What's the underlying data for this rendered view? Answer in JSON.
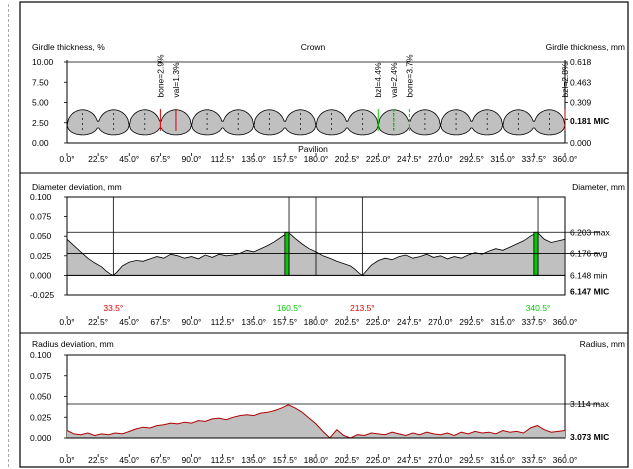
{
  "colors": {
    "fill": "#c0c0c0",
    "red": "#e00000",
    "green": "#00cc00",
    "darkred": "#b00000"
  },
  "chart_data": [
    {
      "type": "area",
      "name_key": "girdle",
      "title_left": "Girdle thickness, %",
      "title_right": "Girdle thickness, mm",
      "top_label": "Crown",
      "bottom_label": "Pavilion",
      "x_ticks": [
        "0.0°",
        "22.5°",
        "45.0°",
        "67.5°",
        "90.0°",
        "112.5°",
        "135.0°",
        "157.5°",
        "180.0°",
        "202.5°",
        "225.0°",
        "247.5°",
        "270.0°",
        "292.5°",
        "315.0°",
        "337.5°",
        "360.0°"
      ],
      "xlim": [
        0,
        360
      ],
      "ylim": [
        0,
        10
      ],
      "y_ticks_left": [
        "10.00",
        "7.50",
        "5.00",
        "2.50",
        "0.00"
      ],
      "y_ticks_right": [
        "0.618",
        "0.463",
        "0.309",
        "0.000"
      ],
      "y_ticks_right_values": [
        10,
        7.5,
        5,
        0
      ],
      "right_highlight": {
        "label": "0.181 MIC",
        "value": 2.93
      },
      "upper_scallops": 16,
      "upper_base": 4.1,
      "upper_dip": 2.1,
      "lower_base": 1.0,
      "lower_peak": 2.2,
      "annotations": [
        {
          "text": "bone=2.9%",
          "angle": 67.5,
          "color": "red"
        },
        {
          "text": "val=1.3%",
          "angle": 78.75,
          "color": "red"
        },
        {
          "text": "bzl=4.4%",
          "angle": 225.0,
          "color": "green"
        },
        {
          "text": "val=2.4%",
          "angle": 236.25,
          "color": "green"
        },
        {
          "text": "bone=3.7%",
          "angle": 247.5,
          "color": "green"
        },
        {
          "text": "bzl=2.8%",
          "angle": 360.0,
          "color": "darkred"
        }
      ]
    },
    {
      "type": "area",
      "name_key": "diameter",
      "title_left": "Diameter deviation, mm",
      "title_right": "Diameter, mm",
      "x_ticks": [
        "0.0°",
        "22.5°",
        "45.0°",
        "67.5°",
        "90.0°",
        "112.5°",
        "135.0°",
        "157.5°",
        "180.0°",
        "202.5°",
        "225.0°",
        "247.5°",
        "270.0°",
        "292.5°",
        "315.0°",
        "337.5°",
        "360.0°"
      ],
      "xlim": [
        0,
        360
      ],
      "ylim": [
        -0.025,
        0.1
      ],
      "y_ticks_left": [
        "0.100",
        "0.075",
        "0.050",
        "0.025",
        "0.000",
        "-0.025"
      ],
      "y_tick_values": [
        0.1,
        0.075,
        0.05,
        0.025,
        0.0,
        -0.025
      ],
      "right_labels": [
        {
          "text": "6.203 max",
          "value": 0.055
        },
        {
          "text": "6.176 avg",
          "value": 0.028
        },
        {
          "text": "6.148 min",
          "value": 0.0
        },
        {
          "text": "6.147 MIC",
          "value": -0.009,
          "bold": true
        }
      ],
      "ref_lines": [
        0.055,
        0.028
      ],
      "vlines": [
        33.5,
        180.0,
        213.5
      ],
      "markers": [
        {
          "text": "33.5°",
          "angle": 33.5,
          "color": "red"
        },
        {
          "text": "160.5°",
          "angle": 160.5,
          "color": "green"
        },
        {
          "text": "213.5°",
          "angle": 213.5,
          "color": "red"
        },
        {
          "text": "340.5°",
          "angle": 340.5,
          "color": "green"
        }
      ],
      "green_bars": [
        157.5,
        160.5,
        337.5,
        340.5
      ],
      "x": [
        0,
        5,
        10,
        15,
        20,
        25,
        28,
        31,
        33.5,
        36,
        40,
        45,
        50,
        55,
        60,
        65,
        70,
        75,
        80,
        85,
        90,
        95,
        100,
        105,
        110,
        115,
        120,
        125,
        130,
        135,
        140,
        145,
        150,
        155,
        160,
        165,
        170,
        175,
        180,
        185,
        190,
        195,
        200,
        205,
        208,
        211,
        213.5,
        216,
        220,
        225,
        230,
        235,
        240,
        245,
        250,
        255,
        260,
        265,
        270,
        275,
        280,
        285,
        290,
        295,
        300,
        305,
        310,
        315,
        320,
        325,
        330,
        335,
        340,
        345,
        350,
        355,
        360
      ],
      "y": [
        0.046,
        0.038,
        0.03,
        0.022,
        0.016,
        0.011,
        0.006,
        0.002,
        0.0,
        0.004,
        0.012,
        0.017,
        0.019,
        0.018,
        0.021,
        0.024,
        0.022,
        0.027,
        0.025,
        0.022,
        0.024,
        0.021,
        0.026,
        0.023,
        0.027,
        0.025,
        0.026,
        0.028,
        0.032,
        0.03,
        0.034,
        0.038,
        0.043,
        0.049,
        0.055,
        0.047,
        0.04,
        0.034,
        0.03,
        0.025,
        0.022,
        0.018,
        0.015,
        0.012,
        0.008,
        0.003,
        0.0,
        0.005,
        0.013,
        0.019,
        0.022,
        0.02,
        0.024,
        0.026,
        0.022,
        0.024,
        0.027,
        0.023,
        0.025,
        0.021,
        0.024,
        0.022,
        0.026,
        0.029,
        0.027,
        0.031,
        0.034,
        0.032,
        0.036,
        0.04,
        0.044,
        0.05,
        0.055,
        0.046,
        0.042,
        0.044,
        0.046
      ]
    },
    {
      "type": "area",
      "name_key": "radius",
      "title_left": "Radius deviation, mm",
      "title_right": "Radius, mm",
      "x_ticks": [
        "0.0°",
        "22.5°",
        "45.0°",
        "67.5°",
        "90.0°",
        "112.5°",
        "135.0°",
        "157.5°",
        "180.0°",
        "202.5°",
        "225.0°",
        "247.5°",
        "270.0°",
        "292.5°",
        "315.0°",
        "337.5°",
        "360.0°"
      ],
      "xlim": [
        0,
        360
      ],
      "ylim": [
        0,
        0.1
      ],
      "y_ticks_left": [
        "0.100",
        "0.075",
        "0.050",
        "0.025",
        "0.000"
      ],
      "y_tick_values": [
        0.1,
        0.075,
        0.05,
        0.025,
        0.0
      ],
      "right_labels": [
        {
          "text": "3.114 max",
          "value": 0.041
        },
        {
          "text": "3.073 MIC",
          "value": 0.0,
          "bold": true
        }
      ],
      "ref_lines": [
        0.041
      ],
      "x": [
        0,
        5,
        10,
        15,
        20,
        25,
        30,
        35,
        40,
        45,
        50,
        55,
        60,
        65,
        70,
        75,
        80,
        85,
        90,
        95,
        100,
        105,
        110,
        115,
        120,
        125,
        130,
        135,
        140,
        145,
        150,
        155,
        160,
        165,
        170,
        175,
        180,
        185,
        190,
        195,
        200,
        205,
        210,
        215,
        220,
        225,
        230,
        235,
        240,
        245,
        250,
        255,
        260,
        265,
        270,
        275,
        280,
        285,
        290,
        295,
        300,
        305,
        310,
        315,
        320,
        325,
        330,
        335,
        340,
        345,
        350,
        355,
        360
      ],
      "y": [
        0.009,
        0.005,
        0.004,
        0.006,
        0.003,
        0.005,
        0.004,
        0.006,
        0.005,
        0.008,
        0.011,
        0.013,
        0.012,
        0.015,
        0.016,
        0.018,
        0.017,
        0.019,
        0.018,
        0.021,
        0.02,
        0.023,
        0.024,
        0.022,
        0.025,
        0.027,
        0.028,
        0.027,
        0.03,
        0.031,
        0.033,
        0.036,
        0.04,
        0.036,
        0.031,
        0.024,
        0.017,
        0.008,
        0.0,
        0.01,
        0.003,
        0.0,
        0.004,
        0.003,
        0.006,
        0.005,
        0.004,
        0.007,
        0.005,
        0.003,
        0.006,
        0.004,
        0.007,
        0.005,
        0.004,
        0.006,
        0.003,
        0.007,
        0.005,
        0.008,
        0.006,
        0.007,
        0.005,
        0.009,
        0.007,
        0.008,
        0.006,
        0.012,
        0.015,
        0.01,
        0.007,
        0.008,
        0.009
      ]
    }
  ]
}
